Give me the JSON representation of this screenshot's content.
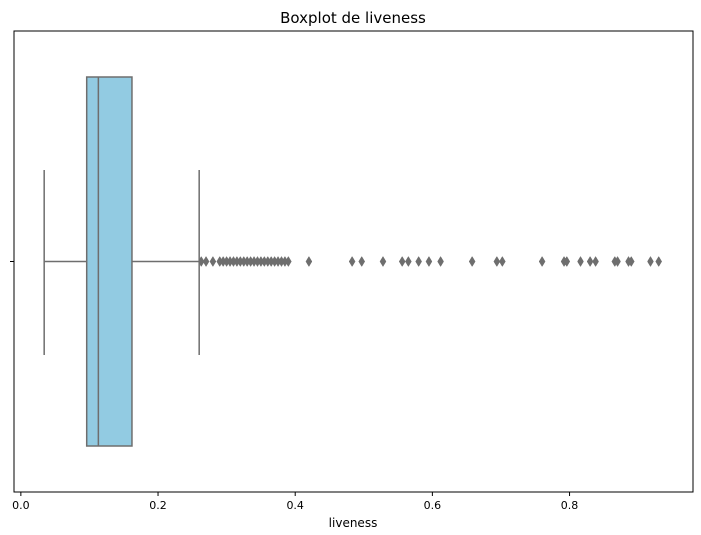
{
  "chart_data": {
    "type": "boxplot",
    "title": "Boxplot de liveness",
    "xlabel": "liveness",
    "ylabel": "",
    "xlim": [
      -0.01,
      0.98
    ],
    "x_ticks": [
      0.0,
      0.2,
      0.4,
      0.6,
      0.8
    ],
    "x_tick_labels": [
      "0.0",
      "0.2",
      "0.4",
      "0.6",
      "0.8"
    ],
    "grid": false,
    "box_color": "#92cbe2",
    "line_color": "#6e6e6e",
    "box": {
      "whisker_low": 0.034,
      "q1": 0.096,
      "median": 0.113,
      "q3": 0.162,
      "whisker_high": 0.26
    },
    "outliers": [
      0.263,
      0.27,
      0.28,
      0.29,
      0.295,
      0.3,
      0.305,
      0.31,
      0.315,
      0.32,
      0.325,
      0.33,
      0.335,
      0.34,
      0.345,
      0.35,
      0.355,
      0.36,
      0.365,
      0.37,
      0.375,
      0.38,
      0.385,
      0.39,
      0.42,
      0.483,
      0.497,
      0.528,
      0.556,
      0.565,
      0.58,
      0.595,
      0.612,
      0.658,
      0.694,
      0.702,
      0.76,
      0.792,
      0.796,
      0.816,
      0.83,
      0.838,
      0.866,
      0.87,
      0.886,
      0.89,
      0.918,
      0.93
    ]
  }
}
